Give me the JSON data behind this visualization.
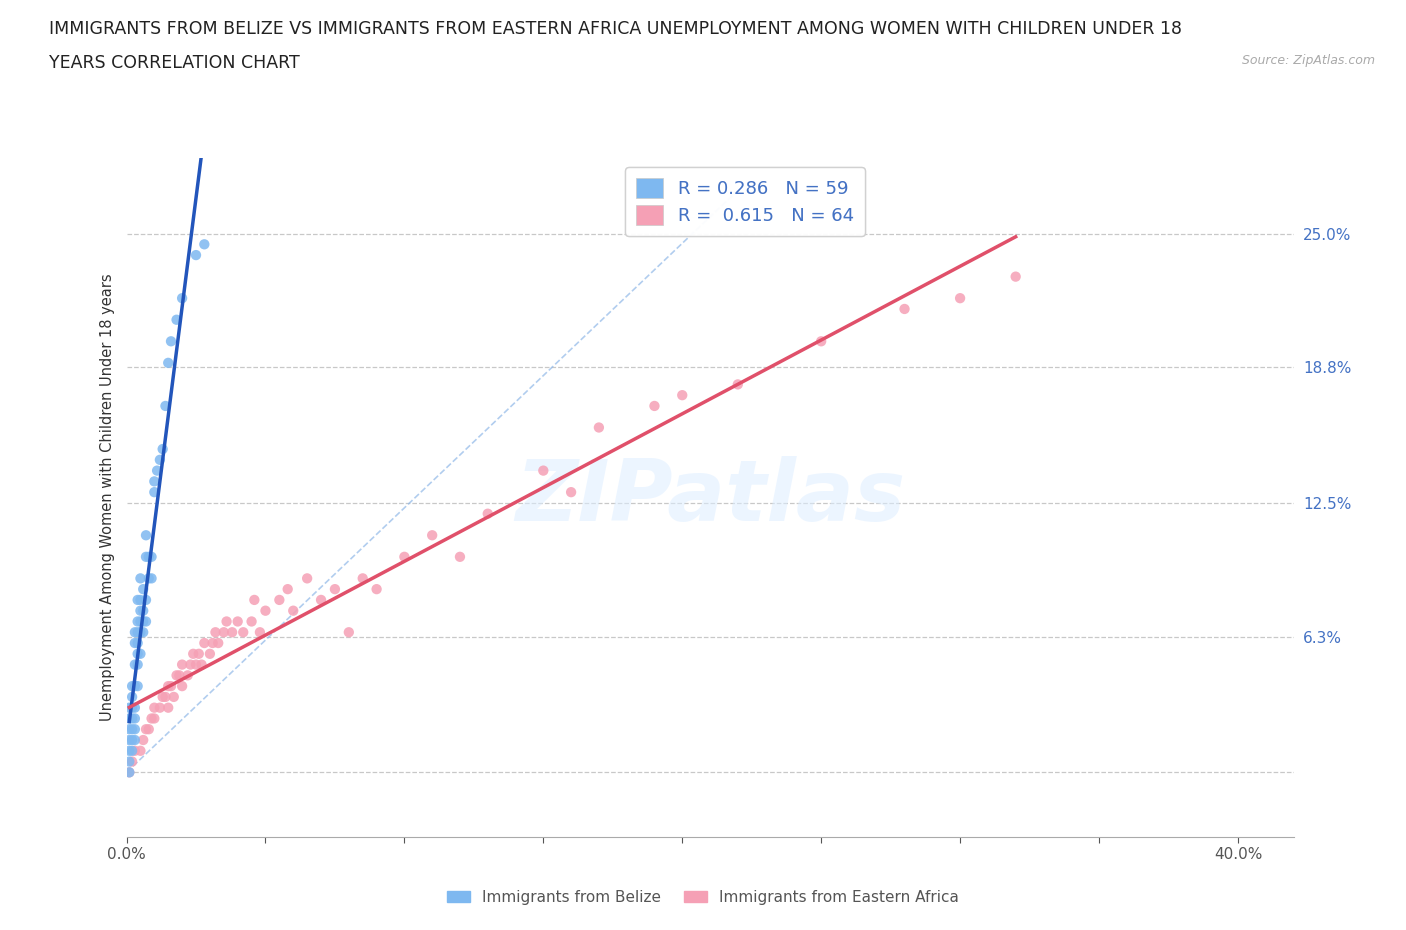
{
  "title_line1": "IMMIGRANTS FROM BELIZE VS IMMIGRANTS FROM EASTERN AFRICA UNEMPLOYMENT AMONG WOMEN WITH CHILDREN UNDER 18",
  "title_line2": "YEARS CORRELATION CHART",
  "source": "Source: ZipAtlas.com",
  "ylabel": "Unemployment Among Women with Children Under 18 years",
  "xlim": [
    0.0,
    0.42
  ],
  "ylim": [
    -0.03,
    0.285
  ],
  "belize_color": "#7eb8f0",
  "eastern_africa_color": "#f5a0b5",
  "belize_trend_color": "#2255bb",
  "eastern_africa_trend_color": "#e0506a",
  "belize_R": 0.286,
  "belize_N": 59,
  "eastern_africa_R": 0.615,
  "eastern_africa_N": 64,
  "grid_color": "#c8c8c8",
  "watermark": "ZIPatlas",
  "legend_label_belize": "Immigrants from Belize",
  "legend_label_eastern_africa": "Immigrants from Eastern Africa",
  "belize_x": [
    0.001,
    0.001,
    0.001,
    0.001,
    0.001,
    0.001,
    0.001,
    0.002,
    0.002,
    0.002,
    0.002,
    0.002,
    0.002,
    0.002,
    0.003,
    0.003,
    0.003,
    0.003,
    0.003,
    0.003,
    0.003,
    0.003,
    0.004,
    0.004,
    0.004,
    0.004,
    0.004,
    0.004,
    0.004,
    0.005,
    0.005,
    0.005,
    0.005,
    0.005,
    0.005,
    0.006,
    0.006,
    0.006,
    0.006,
    0.007,
    0.007,
    0.007,
    0.007,
    0.008,
    0.008,
    0.009,
    0.009,
    0.01,
    0.01,
    0.011,
    0.012,
    0.013,
    0.014,
    0.015,
    0.016,
    0.018,
    0.02,
    0.025,
    0.028
  ],
  "belize_y": [
    0.0,
    0.005,
    0.01,
    0.015,
    0.02,
    0.025,
    0.03,
    0.01,
    0.015,
    0.02,
    0.025,
    0.03,
    0.035,
    0.04,
    0.015,
    0.02,
    0.025,
    0.03,
    0.04,
    0.05,
    0.06,
    0.065,
    0.04,
    0.05,
    0.055,
    0.06,
    0.065,
    0.07,
    0.08,
    0.055,
    0.065,
    0.07,
    0.075,
    0.08,
    0.09,
    0.065,
    0.07,
    0.075,
    0.085,
    0.07,
    0.08,
    0.1,
    0.11,
    0.09,
    0.1,
    0.09,
    0.1,
    0.13,
    0.135,
    0.14,
    0.145,
    0.15,
    0.17,
    0.19,
    0.2,
    0.21,
    0.22,
    0.24,
    0.245
  ],
  "eastern_africa_x": [
    0.001,
    0.002,
    0.003,
    0.005,
    0.006,
    0.007,
    0.008,
    0.009,
    0.01,
    0.01,
    0.012,
    0.013,
    0.014,
    0.015,
    0.015,
    0.016,
    0.017,
    0.018,
    0.019,
    0.02,
    0.02,
    0.022,
    0.023,
    0.024,
    0.025,
    0.026,
    0.027,
    0.028,
    0.03,
    0.031,
    0.032,
    0.033,
    0.035,
    0.036,
    0.038,
    0.04,
    0.042,
    0.045,
    0.046,
    0.048,
    0.05,
    0.055,
    0.058,
    0.06,
    0.065,
    0.07,
    0.075,
    0.08,
    0.085,
    0.09,
    0.1,
    0.11,
    0.12,
    0.13,
    0.15,
    0.16,
    0.17,
    0.19,
    0.2,
    0.22,
    0.25,
    0.28,
    0.3,
    0.32
  ],
  "eastern_africa_y": [
    0.0,
    0.005,
    0.01,
    0.01,
    0.015,
    0.02,
    0.02,
    0.025,
    0.025,
    0.03,
    0.03,
    0.035,
    0.035,
    0.03,
    0.04,
    0.04,
    0.035,
    0.045,
    0.045,
    0.04,
    0.05,
    0.045,
    0.05,
    0.055,
    0.05,
    0.055,
    0.05,
    0.06,
    0.055,
    0.06,
    0.065,
    0.06,
    0.065,
    0.07,
    0.065,
    0.07,
    0.065,
    0.07,
    0.08,
    0.065,
    0.075,
    0.08,
    0.085,
    0.075,
    0.09,
    0.08,
    0.085,
    0.065,
    0.09,
    0.085,
    0.1,
    0.11,
    0.1,
    0.12,
    0.14,
    0.13,
    0.16,
    0.17,
    0.175,
    0.18,
    0.2,
    0.215,
    0.22,
    0.23
  ],
  "dashed_line_x": [
    0.0,
    0.22
  ],
  "dashed_line_y": [
    0.0,
    0.27
  ]
}
